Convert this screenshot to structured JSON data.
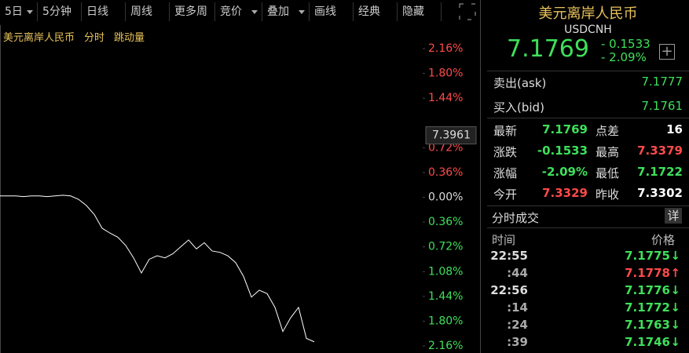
{
  "toolbar": {
    "items": [
      "5日",
      "5分钟",
      "日线",
      "周线",
      "更多周期",
      "竞价",
      "叠加",
      "画线",
      "经典",
      "隐藏"
    ]
  },
  "chart": {
    "tabs": [
      "美元离岸人民币",
      "分时",
      "跳动量"
    ],
    "cursor_price": "7.3961",
    "line_color": "#ffffff",
    "ylim": [
      -2.16,
      2.16
    ],
    "yticks": [
      {
        "value": 2.16,
        "label": "2.16%"
      },
      {
        "value": 1.8,
        "label": "1.80%"
      },
      {
        "value": 1.44,
        "label": "1.44%"
      },
      {
        "value": 0.72,
        "label": "0.72%"
      },
      {
        "value": 0.36,
        "label": "0.36%"
      },
      {
        "value": 0,
        "label": "0.00%"
      },
      {
        "value": -0.36,
        "label": "0.36%"
      },
      {
        "value": -0.72,
        "label": "0.72%"
      },
      {
        "value": -1.08,
        "label": "1.08%"
      },
      {
        "value": -1.44,
        "label": "1.44%"
      },
      {
        "value": -1.8,
        "label": "1.80%"
      },
      {
        "value": -2.16,
        "label": "2.16%"
      }
    ],
    "values": [
      0.02,
      0.02,
      0.02,
      0.01,
      0.02,
      0.02,
      0.01,
      0.02,
      0.03,
      0.02,
      -0.03,
      -0.12,
      -0.25,
      -0.45,
      -0.52,
      -0.58,
      -0.7,
      -0.88,
      -1.1,
      -0.9,
      -0.85,
      -0.88,
      -0.82,
      -0.72,
      -0.62,
      -0.75,
      -0.66,
      -0.78,
      -0.8,
      -0.85,
      -0.95,
      -1.15,
      -1.45,
      -1.35,
      -1.4,
      -1.6,
      -1.95,
      -1.75,
      -1.6,
      -2.05,
      -2.1
    ]
  },
  "quote": {
    "name": "美元离岸人民币",
    "code": "USDCNH",
    "price": "7.1769",
    "change": "- 0.1533",
    "change_pct": "- 2.09%",
    "ask": {
      "label": "卖出(ask)",
      "value": "7.1777"
    },
    "bid": {
      "label": "买入(bid)",
      "value": "7.1761"
    },
    "stats": [
      [
        {
          "label": "最新",
          "value": "7.1769",
          "color": "#3ee05a"
        },
        {
          "label": "点差",
          "value": "16",
          "color": "#ffffff"
        }
      ],
      [
        {
          "label": "涨跌",
          "value": "-0.1533",
          "color": "#3ee05a"
        },
        {
          "label": "最高",
          "value": "7.3379",
          "color": "#ff4a4a"
        }
      ],
      [
        {
          "label": "涨幅",
          "value": "-2.09%",
          "color": "#3ee05a"
        },
        {
          "label": "最低",
          "value": "7.1722",
          "color": "#3ee05a"
        }
      ],
      [
        {
          "label": "今开",
          "value": "7.3329",
          "color": "#ff4a4a"
        },
        {
          "label": "昨收",
          "value": "7.3302",
          "color": "#ffffff"
        }
      ]
    ],
    "trades_title": "分时成交",
    "detail": "详",
    "trade_headers": [
      "时间",
      "价格"
    ],
    "trades": [
      {
        "time": "22:55",
        "price": "7.1775",
        "arrow": "↓",
        "color": "#3ee05a"
      },
      {
        "time": ":44",
        "price": "7.1778",
        "arrow": "↑",
        "color": "#ff4a4a"
      },
      {
        "time": "22:56",
        "price": "7.1776",
        "arrow": "↓",
        "color": "#3ee05a"
      },
      {
        "time": ":14",
        "price": "7.1772",
        "arrow": "↓",
        "color": "#3ee05a"
      },
      {
        "time": ":24",
        "price": "7.1763",
        "arrow": "↓",
        "color": "#3ee05a"
      },
      {
        "time": ":39",
        "price": "7.1746",
        "arrow": "↓",
        "color": "#3ee05a"
      }
    ]
  }
}
